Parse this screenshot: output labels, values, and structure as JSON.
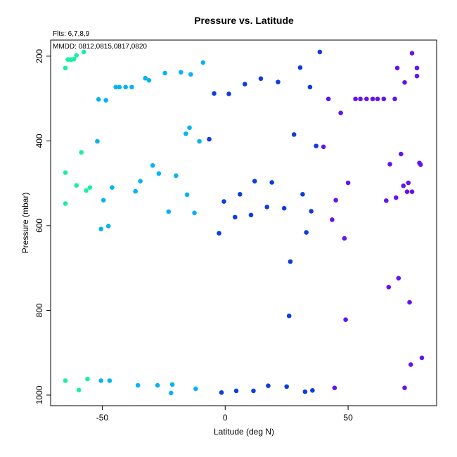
{
  "chart_data": {
    "type": "scatter",
    "title": "Pressure vs. Latitude",
    "subtitle_lines": [
      "Flts: 6,7,8,9",
      "MMDD: 0812,0815,0817,0820"
    ],
    "xlabel": "Latitude (deg N)",
    "ylabel": "Pressure (mbar)",
    "xlim": [
      -71,
      86
    ],
    "ylim": [
      1025,
      162
    ],
    "y_reversed": true,
    "xticks": [
      -50,
      0,
      50
    ],
    "yticks": [
      200,
      400,
      600,
      800,
      1000
    ],
    "grid": false,
    "legend": "none",
    "colors": {
      "green": "#19f0a0",
      "cyan": "#06b4f4",
      "blue": "#0f3ddc",
      "purple": "#6414f0"
    },
    "series": [
      {
        "color_key": "green",
        "points": [
          [
            -65.0,
            228
          ],
          [
            -64.0,
            208
          ],
          [
            -63.0,
            208
          ],
          [
            -62.5,
            208
          ],
          [
            -61.5,
            207
          ],
          [
            -60.5,
            198
          ],
          [
            -57.5,
            190
          ],
          [
            -58.5,
            427
          ],
          [
            -65.0,
            475
          ],
          [
            -60.5,
            505
          ],
          [
            -56.5,
            517
          ],
          [
            -55.0,
            510
          ],
          [
            -65.0,
            548
          ],
          [
            -65.0,
            966
          ],
          [
            -59.5,
            988
          ],
          [
            -56.0,
            962
          ]
        ]
      },
      {
        "color_key": "cyan",
        "points": [
          [
            -51.5,
            302
          ],
          [
            -48.5,
            304
          ],
          [
            -44.5,
            273
          ],
          [
            -43.0,
            273
          ],
          [
            -40.5,
            273
          ],
          [
            -38.0,
            273
          ],
          [
            -32.5,
            252
          ],
          [
            -31.0,
            257
          ],
          [
            -24.5,
            240
          ],
          [
            -18.0,
            238
          ],
          [
            -14.0,
            243
          ],
          [
            -9.0,
            215
          ],
          [
            -52.0,
            401
          ],
          [
            -16.0,
            383
          ],
          [
            -14.5,
            369
          ],
          [
            -10.5,
            401
          ],
          [
            -29.5,
            458
          ],
          [
            -27.0,
            477
          ],
          [
            -20.0,
            482
          ],
          [
            -34.5,
            495
          ],
          [
            -36.5,
            519
          ],
          [
            -15.5,
            527
          ],
          [
            -46.0,
            510
          ],
          [
            -49.5,
            540
          ],
          [
            -23.0,
            567
          ],
          [
            -12.5,
            570
          ],
          [
            -47.5,
            601
          ],
          [
            -50.5,
            608
          ],
          [
            -50.5,
            966
          ],
          [
            -47.0,
            966
          ],
          [
            -35.5,
            977
          ],
          [
            -27.5,
            977
          ],
          [
            -21.5,
            975
          ],
          [
            -12.0,
            985
          ],
          [
            -22.0,
            995
          ]
        ]
      },
      {
        "color_key": "blue",
        "points": [
          [
            38.5,
            190
          ],
          [
            30.5,
            227
          ],
          [
            14.5,
            253
          ],
          [
            21.5,
            261
          ],
          [
            8.0,
            266
          ],
          [
            34.5,
            273
          ],
          [
            -4.5,
            288
          ],
          [
            1.5,
            289
          ],
          [
            28.0,
            385
          ],
          [
            -6.5,
            396
          ],
          [
            37.0,
            412
          ],
          [
            12.0,
            495
          ],
          [
            19.0,
            498
          ],
          [
            6.0,
            526
          ],
          [
            31.5,
            526
          ],
          [
            -0.5,
            543
          ],
          [
            17.0,
            556
          ],
          [
            24.0,
            559
          ],
          [
            35.0,
            566
          ],
          [
            10.5,
            575
          ],
          [
            4.0,
            580
          ],
          [
            33.0,
            616
          ],
          [
            -2.5,
            618
          ],
          [
            26.5,
            685
          ],
          [
            26.0,
            813
          ],
          [
            17.5,
            978
          ],
          [
            25.0,
            980
          ],
          [
            35.5,
            989
          ],
          [
            4.5,
            990
          ],
          [
            11.5,
            990
          ],
          [
            32.5,
            992
          ],
          [
            -1.5,
            994
          ]
        ]
      },
      {
        "color_key": "purple",
        "points": [
          [
            76.0,
            193
          ],
          [
            70.0,
            228
          ],
          [
            78.0,
            228
          ],
          [
            78.0,
            247
          ],
          [
            73.0,
            262
          ],
          [
            42.0,
            301
          ],
          [
            53.0,
            301
          ],
          [
            55.0,
            301
          ],
          [
            57.5,
            301
          ],
          [
            60.0,
            301
          ],
          [
            62.0,
            301
          ],
          [
            64.5,
            301
          ],
          [
            69.0,
            301
          ],
          [
            47.0,
            334
          ],
          [
            40.0,
            414
          ],
          [
            71.5,
            431
          ],
          [
            67.0,
            455
          ],
          [
            79.0,
            452
          ],
          [
            79.5,
            456
          ],
          [
            50.0,
            499
          ],
          [
            74.5,
            499
          ],
          [
            72.5,
            506
          ],
          [
            74.0,
            520
          ],
          [
            76.0,
            520
          ],
          [
            65.5,
            541
          ],
          [
            69.5,
            534
          ],
          [
            45.0,
            540
          ],
          [
            43.5,
            586
          ],
          [
            48.5,
            630
          ],
          [
            70.5,
            724
          ],
          [
            66.5,
            745
          ],
          [
            75.0,
            781
          ],
          [
            49.0,
            822
          ],
          [
            80.0,
            912
          ],
          [
            75.5,
            928
          ],
          [
            44.5,
            983
          ],
          [
            73.0,
            983
          ]
        ]
      }
    ]
  }
}
